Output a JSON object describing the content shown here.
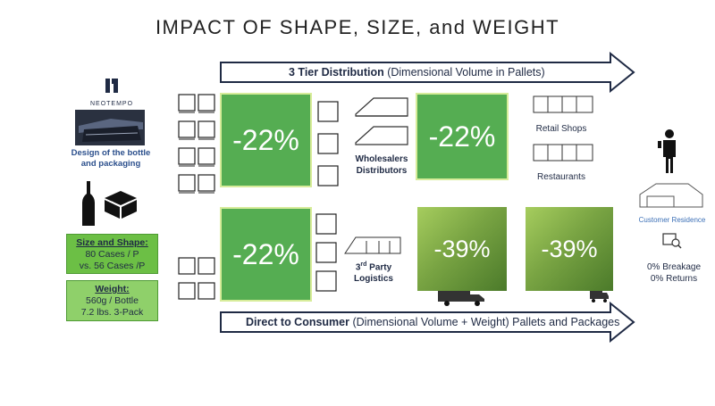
{
  "title": "IMPACT OF SHAPE, SIZE, and WEIGHT",
  "brand": {
    "name": "NEOTEMPO",
    "caption_line1": "Design of the bottle",
    "caption_line2": "and packaging"
  },
  "top_arrow": {
    "bold": "3 Tier Distribution",
    "rest": " (Dimensional Volume in Pallets)"
  },
  "bottom_arrow": {
    "bold": "Direct to Consumer",
    "rest": " (Dimensional Volume + Weight) Pallets and Packages"
  },
  "boxes": {
    "top1": "-22%",
    "top2": "-22%",
    "bottom1": "-22%",
    "bottom2": "-39%",
    "bottom3": "-39%"
  },
  "labels": {
    "wholesalers_line1": "Wholesalers",
    "wholesalers_line2": "Distributors",
    "retail": "Retail Shops",
    "restaurants": "Restaurants",
    "third_party_sup": "rd",
    "third_party_num": "3",
    "third_party_rest": " Party",
    "third_party_line2": "Logistics",
    "customer_residence": "Customer Residence",
    "breakage": "0% Breakage",
    "returns": "0% Returns"
  },
  "size_box": {
    "heading": "Size and Shape:",
    "line1": "80 Cases / P",
    "line2": "vs. 56 Cases /P"
  },
  "weight_box": {
    "heading": "Weight:",
    "line1": "560g / Bottle",
    "line2": "7.2 lbs. 3-Pack"
  },
  "colors": {
    "green": "#55ad52",
    "dark_navy": "#1f2a44",
    "accent_blue": "#3b6fb6"
  }
}
